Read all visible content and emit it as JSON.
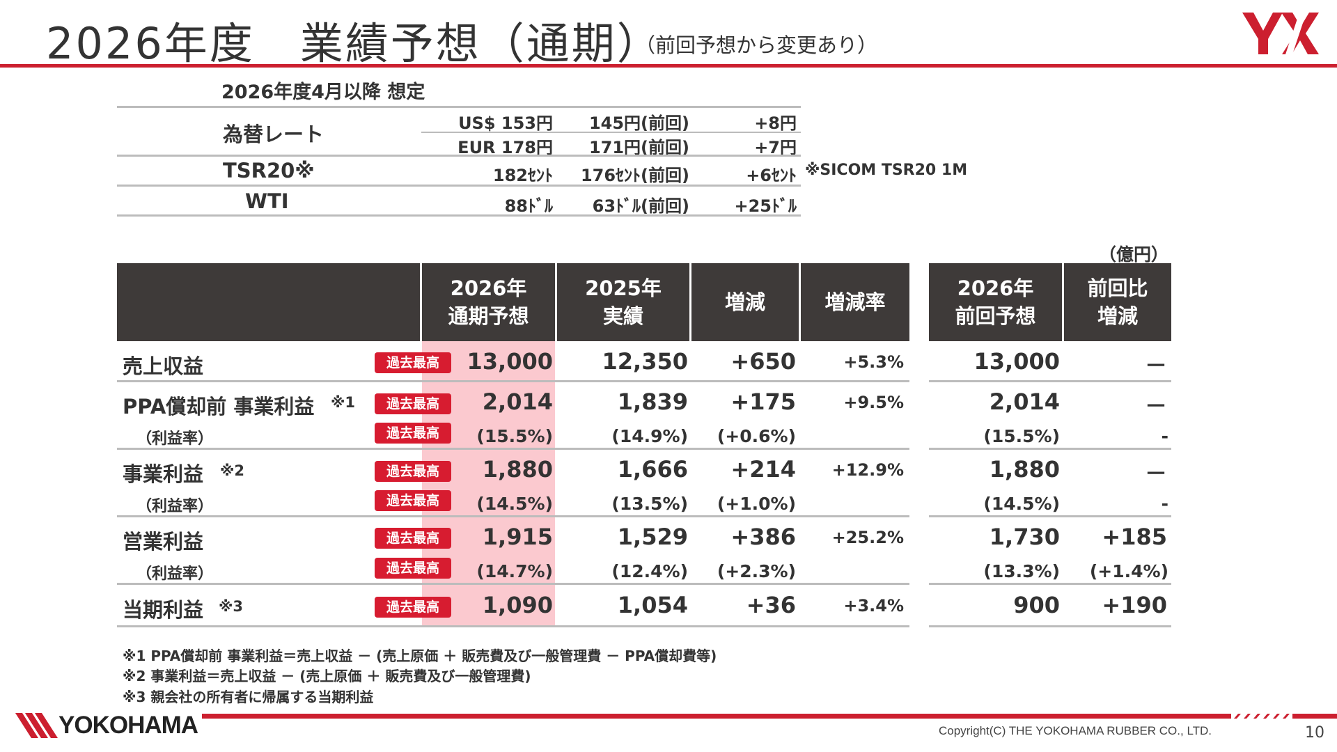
{
  "header": {
    "title": "2026年度　業績予想（通期）",
    "title_note": "（前回予想から変更あり）",
    "logo_text": "YX"
  },
  "assumptions": {
    "heading": "2026年度4月以降  想定",
    "fx_label": "為替レート",
    "tsr_label": "TSR20※",
    "wti_label": "WTI",
    "rows": [
      {
        "current": "US$ 153円",
        "previous": "145円(前回)",
        "diff": "+8円"
      },
      {
        "current": "EUR 178円",
        "previous": "171円(前回)",
        "diff": "+7円"
      },
      {
        "current": "182ｾﾝﾄ",
        "previous": "176ｾﾝﾄ(前回)",
        "diff": "+6ｾﾝﾄ",
        "note": "※SICOM TSR20 1M"
      },
      {
        "current": "88ﾄﾞﾙ",
        "previous": "63ﾄﾞﾙ(前回)",
        "diff": "+25ﾄﾞﾙ"
      }
    ]
  },
  "table": {
    "unit": "（億円）",
    "headers": {
      "forecast_l1": "2026年",
      "forecast_l2": "通期予想",
      "actual_l1": "2025年",
      "actual_l2": "実績",
      "change": "増減",
      "change_rate": "増減率",
      "prev_l1": "2026年",
      "prev_l2": "前回予想",
      "vs_prev_l1": "前回比",
      "vs_prev_l2": "増減"
    },
    "badge_text": "過去最高",
    "rows": [
      {
        "label": "売上収益",
        "mark": "",
        "forecast": "13,000",
        "actual": "12,350",
        "change": "+650",
        "rate": "+5.3%",
        "prev": "13,000",
        "vs_prev": "－"
      },
      {
        "label": "PPA償却前 事業利益",
        "mark": "※1",
        "forecast": "2,014",
        "actual": "1,839",
        "change": "+175",
        "rate": "+9.5%",
        "prev": "2,014",
        "vs_prev": "－"
      },
      {
        "label": "（利益率）",
        "mark": "",
        "forecast": "(15.5%)",
        "actual": "(14.9%)",
        "change": "(+0.6%)",
        "rate": "",
        "prev": "(15.5%)",
        "vs_prev": "-"
      },
      {
        "label": "事業利益",
        "mark": "※2",
        "forecast": "1,880",
        "actual": "1,666",
        "change": "+214",
        "rate": "+12.9%",
        "prev": "1,880",
        "vs_prev": "－"
      },
      {
        "label": "（利益率）",
        "mark": "",
        "forecast": "(14.5%)",
        "actual": "(13.5%)",
        "change": "(+1.0%)",
        "rate": "",
        "prev": "(14.5%)",
        "vs_prev": "-"
      },
      {
        "label": "営業利益",
        "mark": "",
        "forecast": "1,915",
        "actual": "1,529",
        "change": "+386",
        "rate": "+25.2%",
        "prev": "1,730",
        "vs_prev": "+185"
      },
      {
        "label": "（利益率）",
        "mark": "",
        "forecast": "(14.7%)",
        "actual": "(12.4%)",
        "change": "(+2.3%)",
        "rate": "",
        "prev": "(13.3%)",
        "vs_prev": "(+1.4%)"
      },
      {
        "label": "当期利益",
        "mark": "※3",
        "forecast": "1,090",
        "actual": "1,054",
        "change": "+36",
        "rate": "+3.4%",
        "prev": "900",
        "vs_prev": "+190"
      }
    ]
  },
  "footnotes": [
    "※1  PPA償却前 事業利益＝売上収益 － (売上原価 ＋ 販売費及び一般管理費 － PPA償却費等)",
    "※2  事業利益＝売上収益 － (売上原価 ＋ 販売費及び一般管理費)",
    "※3  親会社の所有者に帰属する当期利益"
  ],
  "footer": {
    "brand": "YOKOHAMA",
    "copyright": "Copyright(C) THE YOKOHAMA RUBBER CO., LTD.",
    "page_number": "10"
  },
  "colors": {
    "accent_red": "#cc1f2f",
    "badge_red": "#d71c30",
    "header_dark": "#3e3a39",
    "highlight_pink": "#fbc9cf"
  }
}
